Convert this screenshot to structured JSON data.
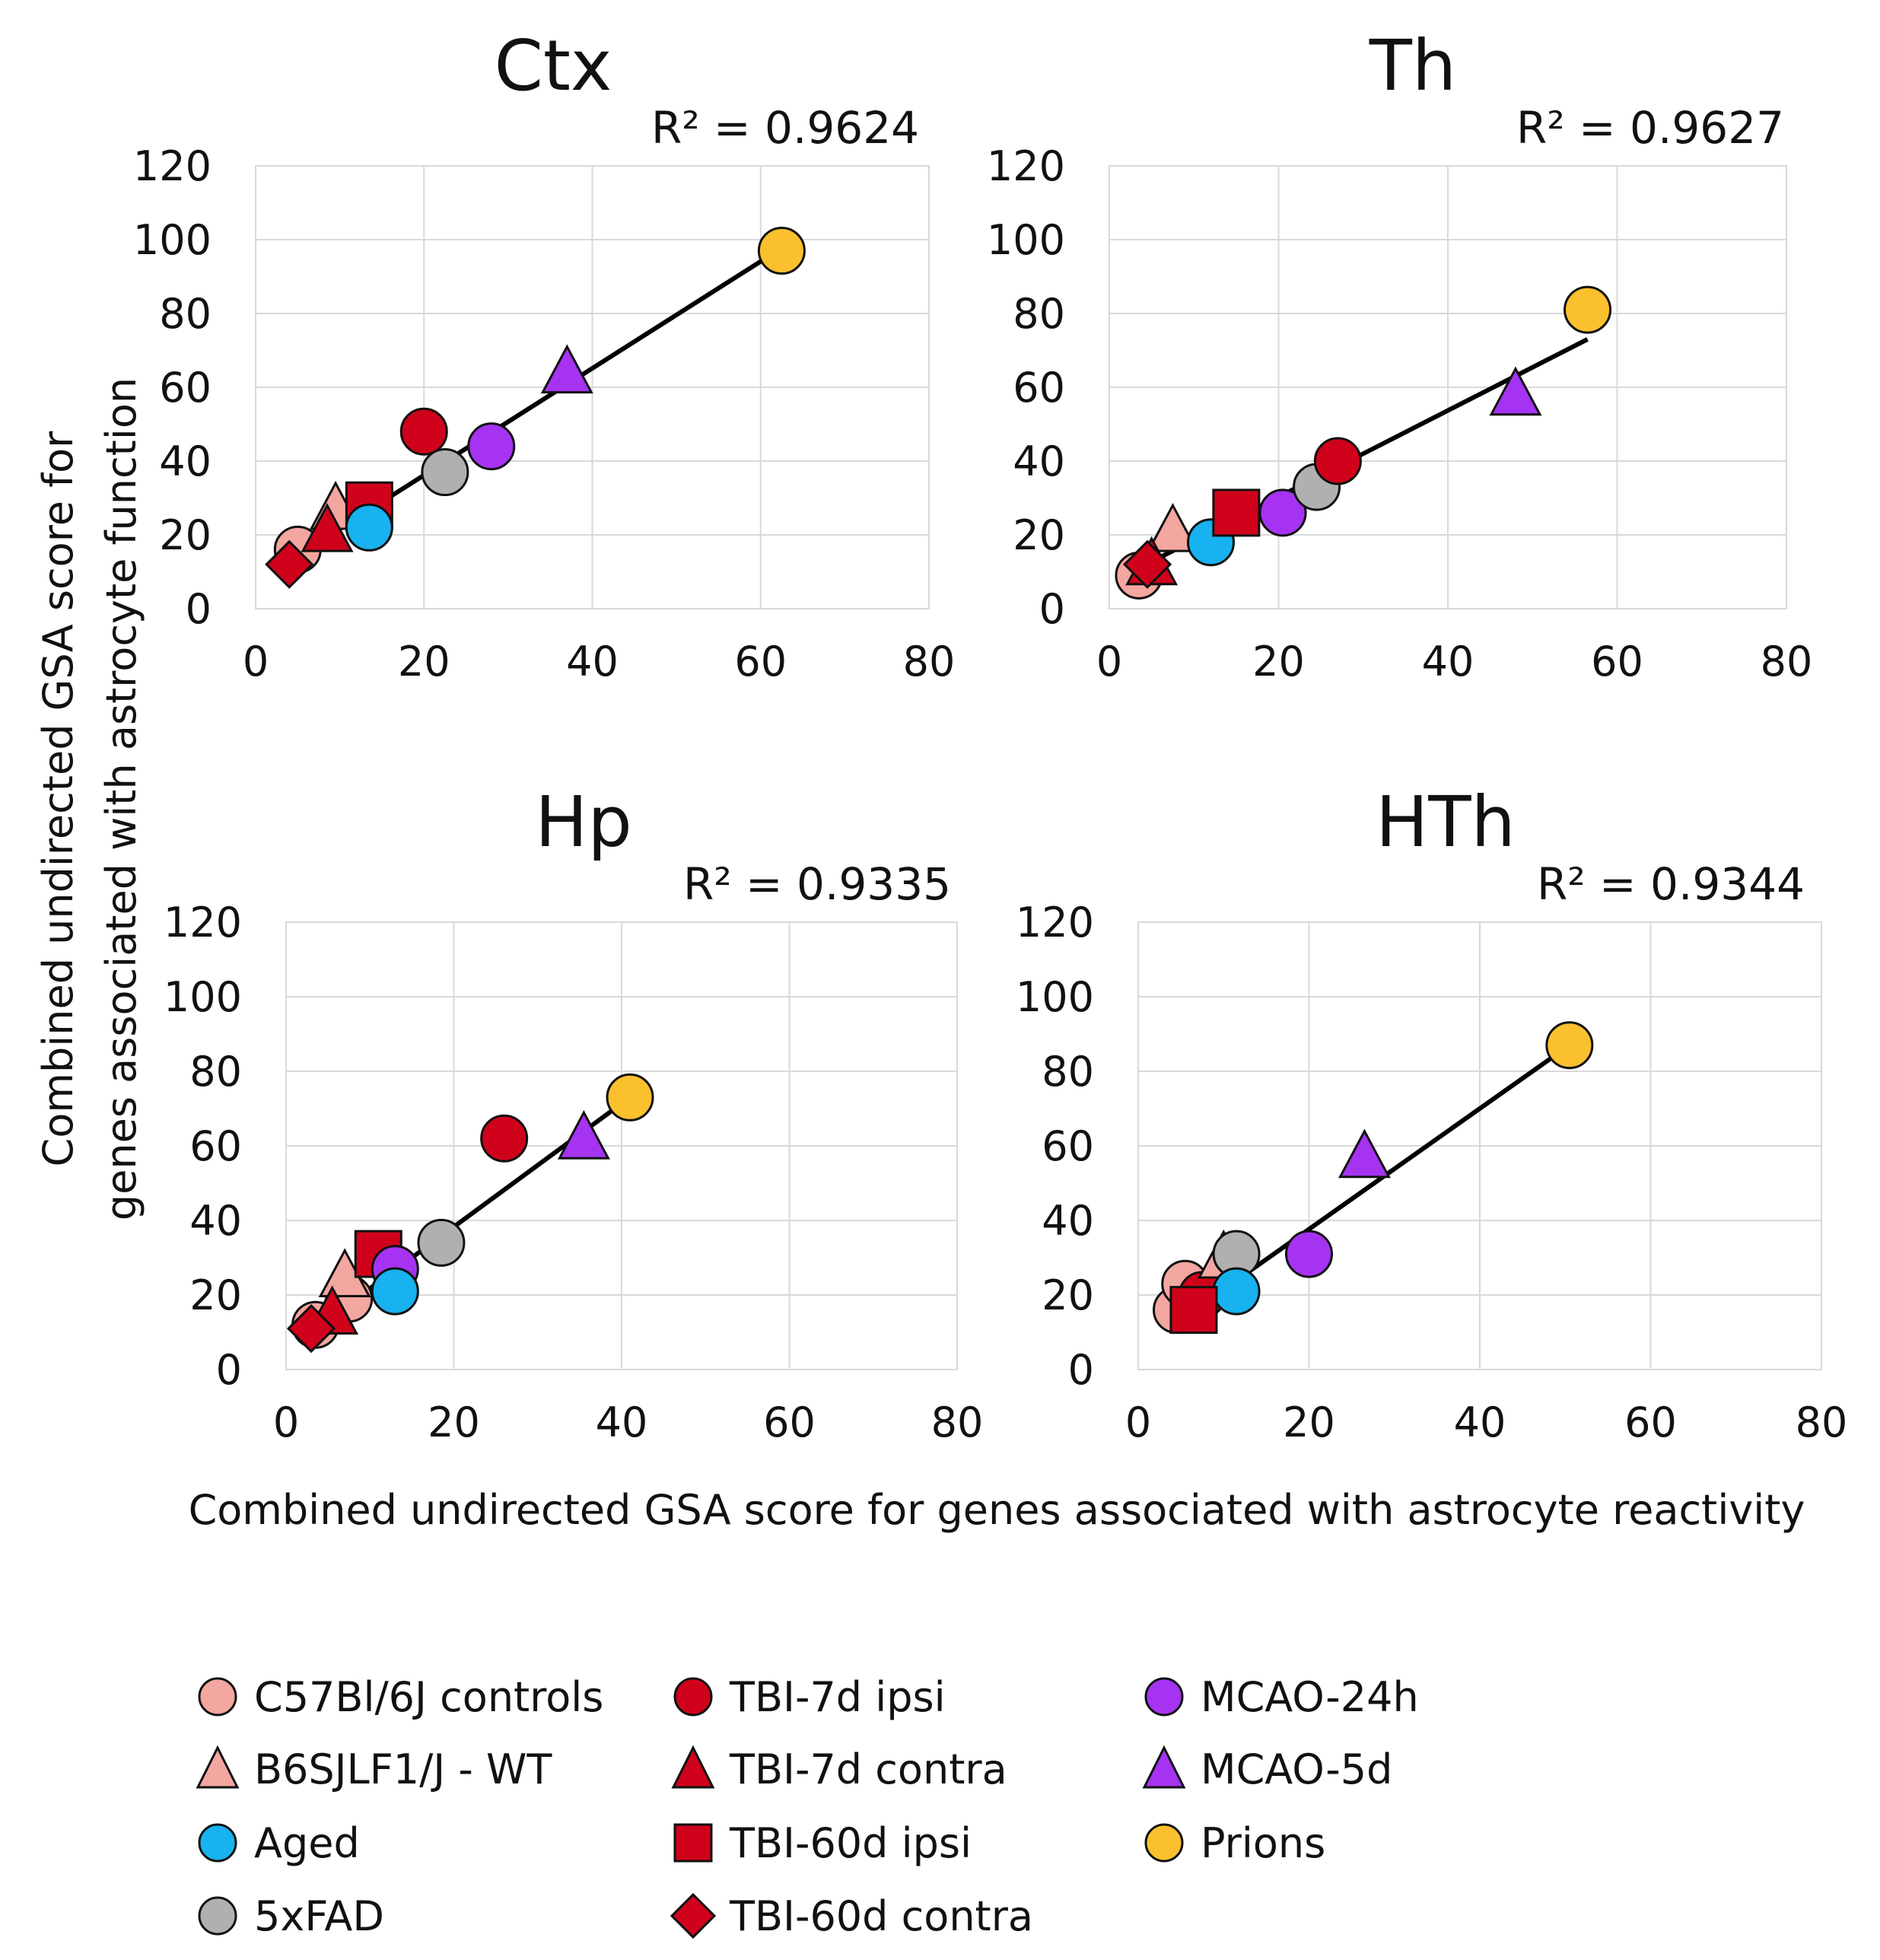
{
  "figure": {
    "ylabel_line1": "Combined undirected GSA score for",
    "ylabel_line2": "genes associated with astrocyte function",
    "xlabel": "Combined undirected GSA score for genes associated with astrocyte reactivity"
  },
  "legend": [
    {
      "label": "C57Bl/6J controls",
      "marker": "circle",
      "color": "#f4a6a0"
    },
    {
      "label": "TBI-7d ipsi",
      "marker": "circle",
      "color": "#d0021b"
    },
    {
      "label": "MCAO-24h",
      "marker": "circle",
      "color": "#a633f2"
    },
    {
      "label": "B6SJLF1/J - WT",
      "marker": "triangle",
      "color": "#f4a6a0"
    },
    {
      "label": "TBI-7d contra",
      "marker": "triangle",
      "color": "#d0021b"
    },
    {
      "label": "MCAO-5d",
      "marker": "triangle",
      "color": "#a633f2"
    },
    {
      "label": "Aged",
      "marker": "circle",
      "color": "#17b2ef"
    },
    {
      "label": "TBI-60d ipsi",
      "marker": "square",
      "color": "#d0021b"
    },
    {
      "label": "Prions",
      "marker": "circle",
      "color": "#fbc02d"
    },
    {
      "label": "5xFAD",
      "marker": "circle",
      "color": "#b0b0b0"
    },
    {
      "label": "TBI-60d contra",
      "marker": "diamond",
      "color": "#d0021b"
    }
  ],
  "chart_data": [
    {
      "type": "scatter",
      "title": "Ctx",
      "r2_label": "R² = 0.9624",
      "xlim": [
        0,
        80
      ],
      "ylim": [
        0,
        120
      ],
      "xticks": [
        0,
        20,
        40,
        60,
        80
      ],
      "yticks": [
        0,
        20,
        40,
        60,
        80,
        100,
        120
      ],
      "grid": true,
      "trendline": {
        "x": [
          4,
          62
        ],
        "y": [
          13,
          97
        ]
      },
      "points": [
        {
          "series": "C57Bl/6J controls",
          "x": 5,
          "y": 16
        },
        {
          "series": "B6SJLF1/J - WT",
          "x": 9.5,
          "y": 27
        },
        {
          "series": "TBI-7d contra",
          "x": 8.5,
          "y": 21
        },
        {
          "series": "TBI-60d ipsi",
          "x": 13.5,
          "y": 28
        },
        {
          "series": "Aged",
          "x": 13.5,
          "y": 22
        },
        {
          "series": "TBI-60d contra",
          "x": 4,
          "y": 12
        },
        {
          "series": "TBI-7d ipsi",
          "x": 20,
          "y": 48
        },
        {
          "series": "5xFAD",
          "x": 22.5,
          "y": 37
        },
        {
          "series": "MCAO-24h",
          "x": 28,
          "y": 44
        },
        {
          "series": "MCAO-5d",
          "x": 37,
          "y": 64
        },
        {
          "series": "Prions",
          "x": 62.5,
          "y": 97
        }
      ]
    },
    {
      "type": "scatter",
      "title": "Th",
      "r2_label": "R² = 0.9627",
      "xlim": [
        0,
        80
      ],
      "ylim": [
        0,
        120
      ],
      "xticks": [
        0,
        20,
        40,
        60,
        80
      ],
      "yticks": [
        0,
        20,
        40,
        60,
        80,
        100,
        120
      ],
      "grid": true,
      "trendline": {
        "x": [
          3.5,
          56.5
        ],
        "y": [
          11,
          73
        ]
      },
      "points": [
        {
          "series": "C57Bl/6J controls",
          "x": 3.5,
          "y": 9
        },
        {
          "series": "B6SJLF1/J - WT",
          "x": 7.5,
          "y": 21
        },
        {
          "series": "TBI-7d contra",
          "x": 5,
          "y": 12
        },
        {
          "series": "TBI-60d contra",
          "x": 4.5,
          "y": 12
        },
        {
          "series": "Aged",
          "x": 12,
          "y": 18
        },
        {
          "series": "TBI-60d ipsi",
          "x": 15,
          "y": 26
        },
        {
          "series": "MCAO-24h",
          "x": 20.5,
          "y": 26
        },
        {
          "series": "5xFAD",
          "x": 24.5,
          "y": 33
        },
        {
          "series": "TBI-7d ipsi",
          "x": 27,
          "y": 40
        },
        {
          "series": "MCAO-5d",
          "x": 48,
          "y": 58
        },
        {
          "series": "Prions",
          "x": 56.5,
          "y": 81
        }
      ]
    },
    {
      "type": "scatter",
      "title": "Hp",
      "r2_label": "R² = 0.9335",
      "xlim": [
        0,
        80
      ],
      "ylim": [
        0,
        120
      ],
      "xticks": [
        0,
        20,
        40,
        60,
        80
      ],
      "yticks": [
        0,
        20,
        40,
        60,
        80,
        100,
        120
      ],
      "grid": true,
      "trendline": {
        "x": [
          3.5,
          41
        ],
        "y": [
          11,
          73
        ]
      },
      "points": [
        {
          "series": "C57Bl/6J controls",
          "x": 3.5,
          "y": 12
        },
        {
          "series": "C57Bl/6J controls",
          "x": 7.5,
          "y": 19
        },
        {
          "series": "B6SJLF1/J - WT",
          "x": 7,
          "y": 25
        },
        {
          "series": "TBI-7d contra",
          "x": 5.5,
          "y": 15
        },
        {
          "series": "TBI-60d contra",
          "x": 3,
          "y": 11
        },
        {
          "series": "TBI-60d ipsi",
          "x": 11,
          "y": 31
        },
        {
          "series": "MCAO-24h",
          "x": 13,
          "y": 27
        },
        {
          "series": "Aged",
          "x": 13,
          "y": 21
        },
        {
          "series": "5xFAD",
          "x": 18.5,
          "y": 34
        },
        {
          "series": "TBI-7d ipsi",
          "x": 26,
          "y": 62
        },
        {
          "series": "MCAO-5d",
          "x": 35.5,
          "y": 62
        },
        {
          "series": "Prions",
          "x": 41,
          "y": 73
        }
      ]
    },
    {
      "type": "scatter",
      "title": "HTh",
      "r2_label": "R² = 0.9344",
      "xlim": [
        0,
        80
      ],
      "ylim": [
        0,
        120
      ],
      "xticks": [
        0,
        20,
        40,
        60,
        80
      ],
      "yticks": [
        0,
        20,
        40,
        60,
        80,
        100,
        120
      ],
      "grid": true,
      "trendline": {
        "x": [
          6,
          50.5
        ],
        "y": [
          15,
          87
        ]
      },
      "points": [
        {
          "series": "C57Bl/6J controls",
          "x": 4.5,
          "y": 16
        },
        {
          "series": "C57Bl/6J controls",
          "x": 5.5,
          "y": 23
        },
        {
          "series": "TBI-7d ipsi",
          "x": 7.5,
          "y": 20
        },
        {
          "series": "B6SJLF1/J - WT",
          "x": 10,
          "y": 30
        },
        {
          "series": "5xFAD",
          "x": 11.5,
          "y": 31
        },
        {
          "series": "Aged",
          "x": 11.5,
          "y": 21
        },
        {
          "series": "TBI-60d ipsi",
          "x": 6.5,
          "y": 16
        },
        {
          "series": "MCAO-24h",
          "x": 20,
          "y": 31
        },
        {
          "series": "MCAO-5d",
          "x": 26.5,
          "y": 57
        },
        {
          "series": "Prions",
          "x": 50.5,
          "y": 87
        }
      ]
    }
  ]
}
